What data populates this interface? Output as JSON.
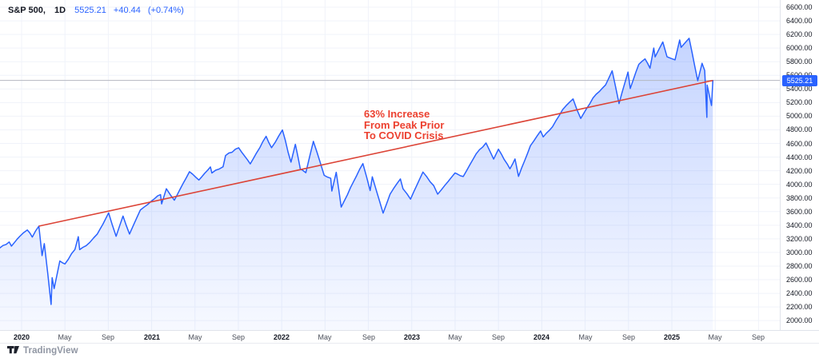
{
  "header": {
    "symbol": "S&P 500,",
    "interval": "1D",
    "last_price": "5525.21",
    "change": "+40.44",
    "change_pct": "(+0.74%)"
  },
  "annotation": {
    "lines": [
      "63% Increase",
      "From Peak Prior",
      "To COVID Crisis"
    ]
  },
  "price_axis": {
    "labels": [
      "6600.00",
      "6400.00",
      "6200.00",
      "6000.00",
      "5800.00",
      "5600.00",
      "5400.00",
      "5200.00",
      "5000.00",
      "4800.00",
      "4600.00",
      "4400.00",
      "4200.00",
      "4000.00",
      "3800.00",
      "3600.00",
      "3400.00",
      "3200.00",
      "3000.00",
      "2800.00",
      "2600.00",
      "2400.00",
      "2200.00",
      "2000.00"
    ],
    "badge": "5525.21"
  },
  "time_axis": {
    "ticks": [
      {
        "label": "2020",
        "date": "2020-01-01",
        "major": true
      },
      {
        "label": "May",
        "date": "2020-05-01",
        "major": false
      },
      {
        "label": "Sep",
        "date": "2020-09-01",
        "major": false
      },
      {
        "label": "2021",
        "date": "2021-01-01",
        "major": true
      },
      {
        "label": "May",
        "date": "2021-05-01",
        "major": false
      },
      {
        "label": "Sep",
        "date": "2021-09-01",
        "major": false
      },
      {
        "label": "2022",
        "date": "2022-01-01",
        "major": true
      },
      {
        "label": "May",
        "date": "2022-05-01",
        "major": false
      },
      {
        "label": "Sep",
        "date": "2022-09-01",
        "major": false
      },
      {
        "label": "2023",
        "date": "2023-01-01",
        "major": true
      },
      {
        "label": "May",
        "date": "2023-05-01",
        "major": false
      },
      {
        "label": "Sep",
        "date": "2023-09-01",
        "major": false
      },
      {
        "label": "2024",
        "date": "2024-01-01",
        "major": true
      },
      {
        "label": "May",
        "date": "2024-05-01",
        "major": false
      },
      {
        "label": "Sep",
        "date": "2024-09-01",
        "major": false
      },
      {
        "label": "2025",
        "date": "2025-01-01",
        "major": true
      },
      {
        "label": "May",
        "date": "2025-05-01",
        "major": false
      },
      {
        "label": "Sep",
        "date": "2025-09-01",
        "major": false
      }
    ]
  },
  "footer": {
    "brand": "TradingView"
  },
  "colors": {
    "accent_blue": "#2962ff",
    "line": "#2962ff",
    "area_top": "rgba(41,98,255,0.27)",
    "area_bottom": "rgba(41,98,255,0.04)",
    "trend_line": "#dc4437",
    "annotation_text": "#ec4130",
    "badge_bg": "#2962ff",
    "grid": "#f0f3fa",
    "border": "#e0e3eb",
    "price_line": "#b4b7c0"
  },
  "chart_data": {
    "type": "area",
    "series_name": "S&P 500 (1D close)",
    "ylim_visible": [
      1880,
      6706
    ],
    "y_tick_step": 200,
    "x_range": [
      "2019-11-01",
      "2025-10-30"
    ],
    "grid": true,
    "legend_position": "top-left",
    "last_value": 5525.21,
    "price_line_value": 5525.21,
    "trend_line": {
      "from": {
        "date": "2020-02-19",
        "value": 3386
      },
      "to": {
        "date": "2025-04-25",
        "value": 5525.21
      },
      "meaning": "63% increase from peak prior to COVID crisis"
    },
    "points": [
      [
        "2019-11-01",
        3067
      ],
      [
        "2019-11-27",
        3154
      ],
      [
        "2019-12-03",
        3093
      ],
      [
        "2019-12-27",
        3240
      ],
      [
        "2020-01-17",
        3330
      ],
      [
        "2020-01-31",
        3226
      ],
      [
        "2020-02-19",
        3386
      ],
      [
        "2020-02-28",
        2954
      ],
      [
        "2020-03-04",
        3130
      ],
      [
        "2020-03-23",
        2237
      ],
      [
        "2020-03-26",
        2630
      ],
      [
        "2020-04-01",
        2470
      ],
      [
        "2020-04-17",
        2875
      ],
      [
        "2020-05-01",
        2831
      ],
      [
        "2020-05-29",
        3044
      ],
      [
        "2020-06-08",
        3232
      ],
      [
        "2020-06-12",
        3041
      ],
      [
        "2020-06-30",
        3100
      ],
      [
        "2020-07-31",
        3271
      ],
      [
        "2020-09-02",
        3581
      ],
      [
        "2020-09-23",
        3237
      ],
      [
        "2020-10-12",
        3534
      ],
      [
        "2020-10-30",
        3270
      ],
      [
        "2020-11-30",
        3622
      ],
      [
        "2020-12-31",
        3756
      ],
      [
        "2021-01-26",
        3850
      ],
      [
        "2021-01-29",
        3714
      ],
      [
        "2021-02-12",
        3935
      ],
      [
        "2021-03-04",
        3768
      ],
      [
        "2021-04-16",
        4185
      ],
      [
        "2021-05-12",
        4063
      ],
      [
        "2021-06-14",
        4255
      ],
      [
        "2021-06-18",
        4166
      ],
      [
        "2021-07-19",
        4258
      ],
      [
        "2021-07-26",
        4422
      ],
      [
        "2021-09-02",
        4537
      ],
      [
        "2021-10-04",
        4300
      ],
      [
        "2021-11-18",
        4705
      ],
      [
        "2021-12-03",
        4538
      ],
      [
        "2022-01-03",
        4797
      ],
      [
        "2022-01-27",
        4326
      ],
      [
        "2022-02-09",
        4587
      ],
      [
        "2022-02-23",
        4225
      ],
      [
        "2022-03-08",
        4171
      ],
      [
        "2022-03-29",
        4631
      ],
      [
        "2022-04-29",
        4132
      ],
      [
        "2022-05-17",
        4089
      ],
      [
        "2022-05-20",
        3901
      ],
      [
        "2022-06-02",
        4177
      ],
      [
        "2022-06-16",
        3667
      ],
      [
        "2022-07-29",
        4130
      ],
      [
        "2022-08-16",
        4305
      ],
      [
        "2022-09-06",
        3908
      ],
      [
        "2022-09-12",
        4110
      ],
      [
        "2022-10-12",
        3577
      ],
      [
        "2022-11-01",
        3856
      ],
      [
        "2022-11-30",
        4080
      ],
      [
        "2022-12-07",
        3934
      ],
      [
        "2022-12-28",
        3783
      ],
      [
        "2023-02-02",
        4180
      ],
      [
        "2023-03-02",
        3981
      ],
      [
        "2023-03-13",
        3856
      ],
      [
        "2023-05-01",
        4168
      ],
      [
        "2023-05-24",
        4115
      ],
      [
        "2023-06-30",
        4450
      ],
      [
        "2023-07-27",
        4607
      ],
      [
        "2023-08-18",
        4370
      ],
      [
        "2023-09-01",
        4516
      ],
      [
        "2023-10-03",
        4229
      ],
      [
        "2023-10-17",
        4373
      ],
      [
        "2023-10-27",
        4117
      ],
      [
        "2023-11-30",
        4568
      ],
      [
        "2023-12-28",
        4783
      ],
      [
        "2024-01-05",
        4697
      ],
      [
        "2024-01-31",
        4846
      ],
      [
        "2024-02-29",
        5096
      ],
      [
        "2024-03-28",
        5254
      ],
      [
        "2024-04-19",
        4967
      ],
      [
        "2024-05-23",
        5268
      ],
      [
        "2024-06-28",
        5460
      ],
      [
        "2024-07-16",
        5667
      ],
      [
        "2024-08-05",
        5186
      ],
      [
        "2024-08-30",
        5648
      ],
      [
        "2024-09-06",
        5408
      ],
      [
        "2024-09-30",
        5762
      ],
      [
        "2024-10-17",
        5842
      ],
      [
        "2024-10-31",
        5705
      ],
      [
        "2024-11-11",
        6001
      ],
      [
        "2024-11-15",
        5871
      ],
      [
        "2024-12-06",
        6090
      ],
      [
        "2024-12-18",
        5872
      ],
      [
        "2025-01-10",
        5827
      ],
      [
        "2025-01-23",
        6119
      ],
      [
        "2025-01-27",
        6012
      ],
      [
        "2025-02-19",
        6144
      ],
      [
        "2025-03-13",
        5521
      ],
      [
        "2025-03-25",
        5777
      ],
      [
        "2025-04-02",
        5671
      ],
      [
        "2025-04-08",
        4983
      ],
      [
        "2025-04-09",
        5457
      ],
      [
        "2025-04-21",
        5158
      ],
      [
        "2025-04-25",
        5525.21
      ]
    ]
  }
}
